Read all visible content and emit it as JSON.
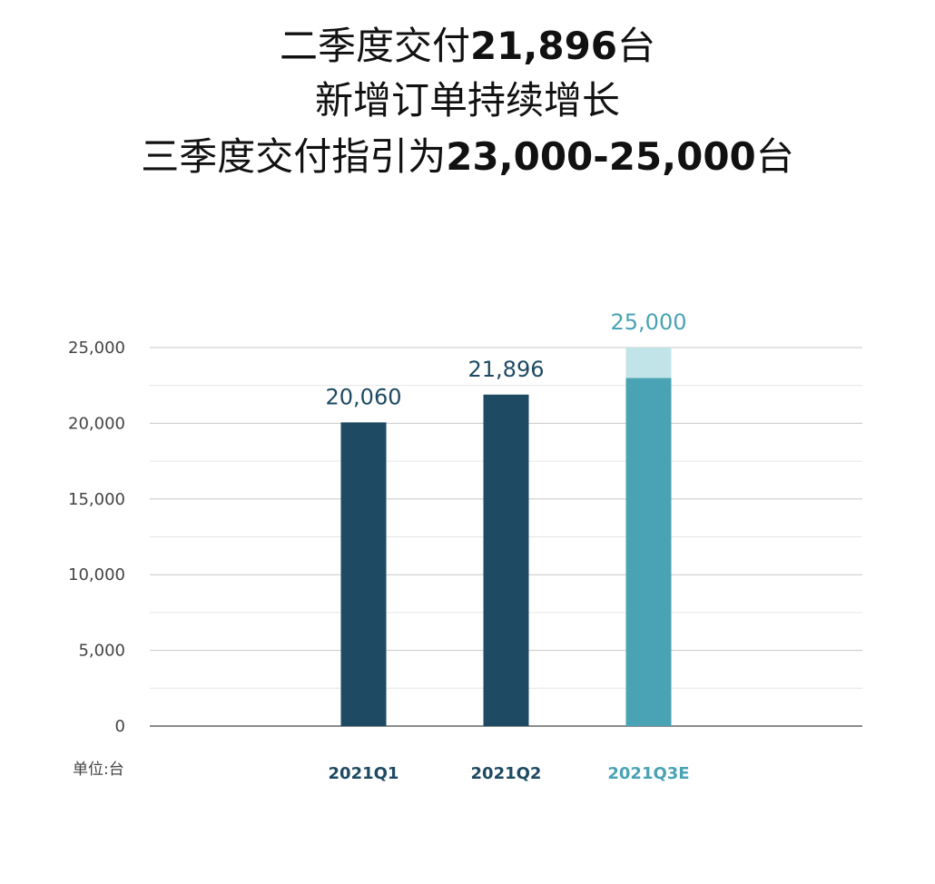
{
  "title_lines": [
    [
      {
        "text": "二季度交付",
        "bold": false
      },
      {
        "text": "21,896",
        "bold": true
      },
      {
        "text": "台",
        "bold": false
      }
    ],
    [
      {
        "text": "新增订单持续增长",
        "bold": false
      }
    ],
    [
      {
        "text": "三季度交付指引为",
        "bold": false
      },
      {
        "text": "23,000-25,000",
        "bold": true
      },
      {
        "text": "台",
        "bold": false
      }
    ]
  ],
  "chart_data": {
    "type": "stacked_bar",
    "categories": [
      "2021Q1",
      "2021Q2",
      "2021Q3E"
    ],
    "category_colors": [
      "#1e4a63",
      "#1e4a63",
      "#4aa3b4"
    ],
    "series": [
      {
        "colors": [
          "#1e4a63",
          "#1e4a63",
          "#4aa3b4"
        ],
        "values": [
          20060,
          21896,
          23000
        ]
      },
      {
        "colors": [
          "#1e4a63",
          "#1e4a63",
          "#c1e4e9"
        ],
        "values": [
          null,
          null,
          2000
        ]
      }
    ],
    "total_labels": {
      "values": [
        20060,
        21896,
        25000
      ],
      "value_labels": [
        "20,060",
        "21,896",
        "25,000"
      ],
      "colors": [
        "#1e4a63",
        "#1e4a63",
        "#4aa3b4"
      ]
    },
    "ylim": [
      0,
      25000
    ],
    "yticks": [
      0,
      {
        "value": 5000,
        "label": "5,000"
      },
      {
        "value": 10000,
        "label": "10,000"
      },
      {
        "value": 15000,
        "label": "15,000"
      },
      {
        "value": 20000,
        "label": "20,000"
      },
      {
        "value": 25000,
        "label": "25,000"
      }
    ],
    "grid": true,
    "unit_label": "单位:台"
  }
}
